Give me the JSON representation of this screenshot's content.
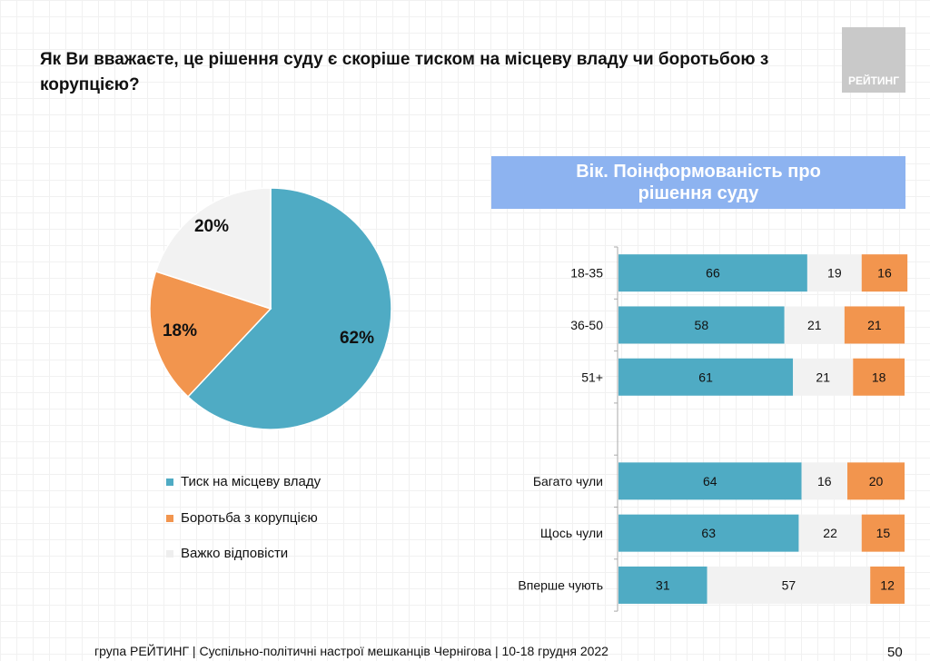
{
  "title": "Як Ви вважаєте, це рішення суду є скоріше тиском на місцеву владу чи боротьбою з корупцією?",
  "logo_text": "РЕЙТИНГ",
  "footer": "група РЕЙТИНГ  | Суспільно-політичні настрої мешканців Чернігова | 10-18 грудня 2022",
  "page_number": "50",
  "chart_data": [
    {
      "type": "pie",
      "labels": [
        "Тиск на місцеву владу",
        "Боротьба з корупцією",
        "Важко відповісти"
      ],
      "values": [
        62,
        18,
        20
      ],
      "value_labels": [
        "62%",
        "18%",
        "20%"
      ],
      "colors": [
        "#4fabc4",
        "#f2954e",
        "#f2f2f2"
      ]
    },
    {
      "type": "bar",
      "orientation": "horizontal",
      "stacked": true,
      "title": "Вік. Поінформованість про рішення суду",
      "categories": [
        "18-35",
        "36-50",
        "51+",
        "",
        "Багато чули",
        "Щось чули",
        "Вперше чують"
      ],
      "series": [
        {
          "name": "Тиск на місцеву владу",
          "color": "#4fabc4",
          "values": [
            66,
            58,
            61,
            null,
            64,
            63,
            31
          ]
        },
        {
          "name": "Важко відповісти",
          "color": "#f2f2f2",
          "values": [
            19,
            21,
            21,
            null,
            16,
            22,
            57
          ]
        },
        {
          "name": "Боротьба з корупцією",
          "color": "#f2954e",
          "values": [
            16,
            21,
            18,
            null,
            20,
            15,
            12
          ]
        }
      ],
      "xlim": [
        0,
        100
      ]
    }
  ]
}
